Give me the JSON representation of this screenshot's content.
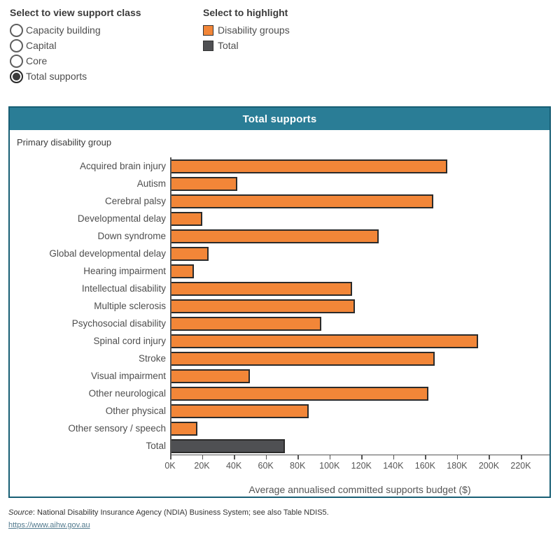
{
  "controls": {
    "support_class": {
      "title": "Select to view support class",
      "options": [
        {
          "label": "Capacity building",
          "selected": false
        },
        {
          "label": "Capital",
          "selected": false
        },
        {
          "label": "Core",
          "selected": false
        },
        {
          "label": "Total supports",
          "selected": true
        }
      ]
    },
    "highlight": {
      "title": "Select to highlight",
      "items": [
        {
          "label": "Disability groups",
          "color": "#f28638"
        },
        {
          "label": "Total",
          "color": "#4f5053"
        }
      ]
    }
  },
  "chart": {
    "title": "Total supports",
    "row_header": "Primary disability group",
    "xlabel": "Average annualised committed supports budget ($)"
  },
  "chart_data": {
    "type": "bar",
    "orientation": "horizontal",
    "title": "Total supports",
    "ylabel": "Primary disability group",
    "xlabel": "Average annualised committed supports budget ($)",
    "unit": "thousand dollars",
    "xmax_thousands": 238,
    "tick_values": [
      0,
      20,
      40,
      60,
      80,
      100,
      120,
      140,
      160,
      180,
      200,
      220
    ],
    "tick_labels": [
      "0K",
      "20K",
      "40K",
      "60K",
      "80K",
      "100K",
      "120K",
      "140K",
      "160K",
      "180K",
      "200K",
      "220K"
    ],
    "colors": {
      "disability": "#f28638",
      "total": "#4f5053"
    },
    "bars": [
      {
        "label": "Acquired brain injury",
        "value": 174,
        "group": "disability"
      },
      {
        "label": "Autism",
        "value": 42,
        "group": "disability"
      },
      {
        "label": "Cerebral palsy",
        "value": 165,
        "group": "disability"
      },
      {
        "label": "Developmental delay",
        "value": 20,
        "group": "disability"
      },
      {
        "label": "Down syndrome",
        "value": 131,
        "group": "disability"
      },
      {
        "label": "Global developmental delay",
        "value": 24,
        "group": "disability"
      },
      {
        "label": "Hearing impairment",
        "value": 15,
        "group": "disability"
      },
      {
        "label": "Intellectual disability",
        "value": 114,
        "group": "disability"
      },
      {
        "label": "Multiple sclerosis",
        "value": 116,
        "group": "disability"
      },
      {
        "label": "Psychosocial disability",
        "value": 95,
        "group": "disability"
      },
      {
        "label": "Spinal cord injury",
        "value": 193,
        "group": "disability"
      },
      {
        "label": "Stroke",
        "value": 166,
        "group": "disability"
      },
      {
        "label": "Visual impairment",
        "value": 50,
        "group": "disability"
      },
      {
        "label": "Other neurological",
        "value": 162,
        "group": "disability"
      },
      {
        "label": "Other physical",
        "value": 87,
        "group": "disability"
      },
      {
        "label": "Other sensory / speech",
        "value": 17,
        "group": "disability"
      },
      {
        "label": "Total",
        "value": 72,
        "group": "total"
      }
    ]
  },
  "footer": {
    "source_label": "Source",
    "source_text": ": National Disability Insurance Agency (NDIA) Business System; see also Table NDIS5.",
    "link_text": "https://www.aihw.gov.au"
  }
}
